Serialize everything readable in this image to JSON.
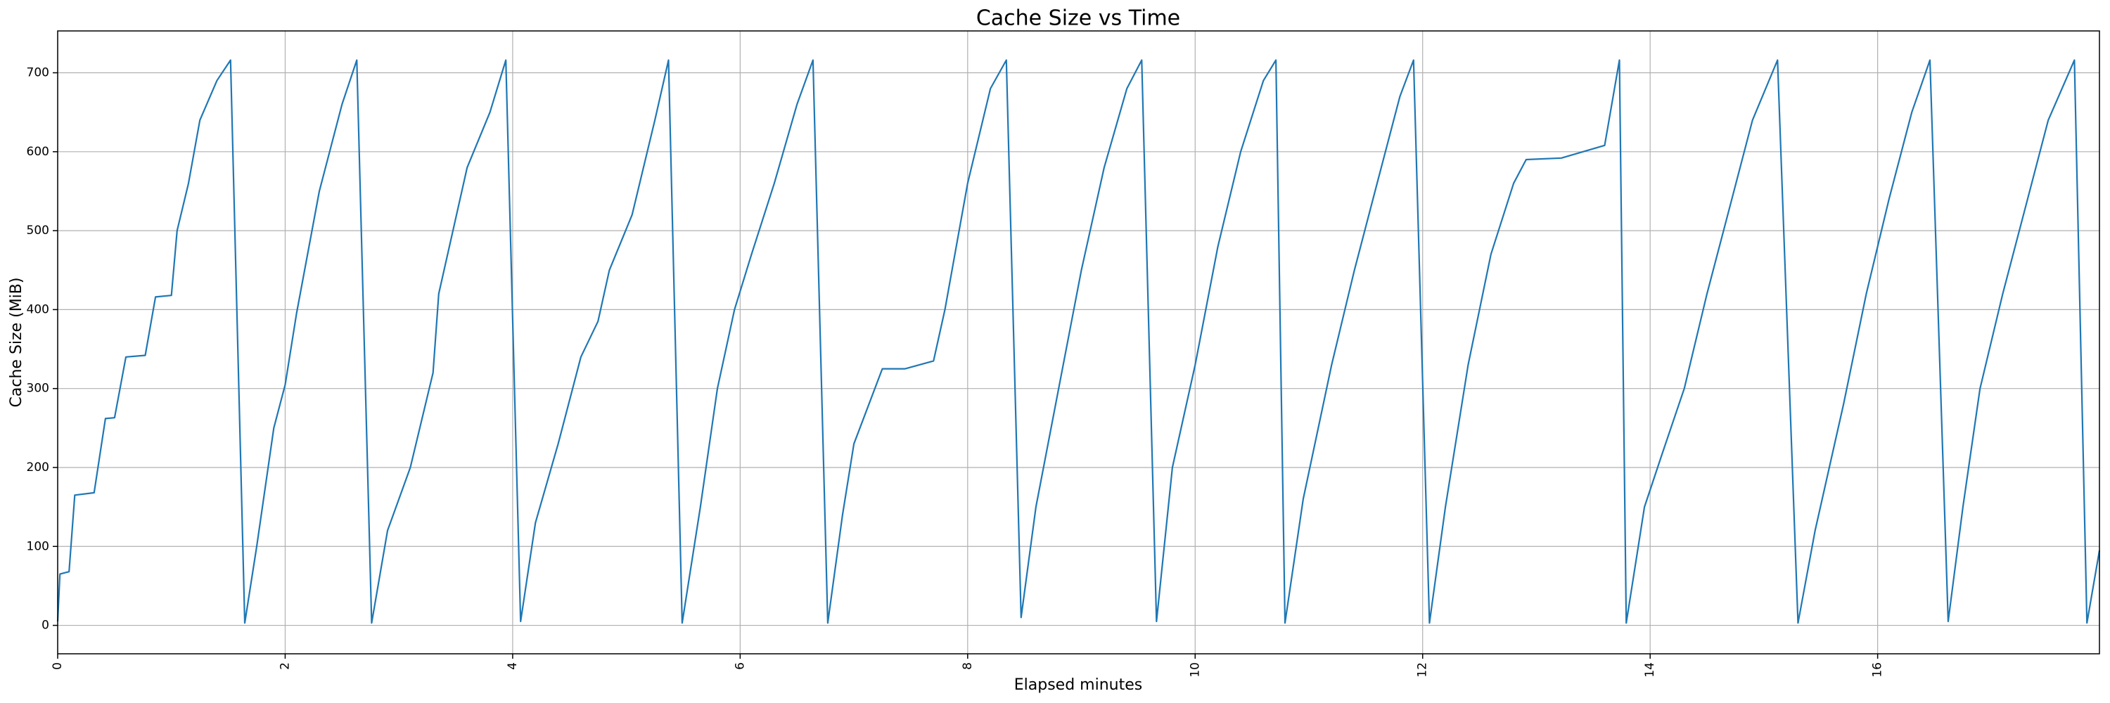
{
  "chart_data": {
    "type": "line",
    "title": "Cache Size vs Time",
    "x_label": "Elapsed minutes",
    "y_label": "Cache Size (MiB)",
    "x": [
      0,
      0.02,
      0.1,
      0.15,
      0.32,
      0.42,
      0.5,
      0.6,
      0.77,
      0.86,
      1.0,
      1.05,
      1.15,
      1.25,
      1.4,
      1.52,
      1.645,
      1.75,
      1.9,
      2.0,
      2.1,
      2.3,
      2.5,
      2.63,
      2.76,
      2.9,
      3.1,
      3.3,
      3.35,
      3.6,
      3.8,
      3.94,
      4.07,
      4.2,
      4.4,
      4.6,
      4.75,
      4.85,
      5.05,
      5.25,
      5.37,
      5.49,
      5.65,
      5.8,
      5.95,
      6.1,
      6.3,
      6.5,
      6.64,
      6.77,
      6.9,
      7.0,
      7.25,
      7.45,
      7.7,
      7.8,
      8.0,
      8.2,
      8.34,
      8.47,
      8.6,
      8.8,
      9.0,
      9.2,
      9.4,
      9.53,
      9.66,
      9.8,
      10.0,
      10.2,
      10.4,
      10.6,
      10.71,
      10.79,
      10.95,
      11.2,
      11.4,
      11.6,
      11.8,
      11.92,
      12.06,
      12.2,
      12.4,
      12.6,
      12.8,
      12.91,
      13.22,
      13.6,
      13.73,
      13.79,
      13.95,
      14.1,
      14.3,
      14.5,
      14.7,
      14.9,
      15.12,
      15.3,
      15.45,
      15.7,
      15.9,
      16.1,
      16.3,
      16.46,
      16.62,
      16.75,
      16.9,
      17.1,
      17.3,
      17.5,
      17.73,
      17.84,
      17.95
    ],
    "series": [
      {
        "name": "Cache Size",
        "color": "#1f77b4",
        "values": [
          5,
          65,
          68,
          165,
          168,
          262,
          263,
          340,
          342,
          416,
          418,
          500,
          560,
          640,
          690,
          716,
          3,
          100,
          250,
          305,
          395,
          550,
          660,
          716,
          3,
          120,
          200,
          320,
          420,
          580,
          650,
          716,
          5,
          130,
          230,
          340,
          385,
          450,
          520,
          640,
          716,
          3,
          150,
          300,
          400,
          470,
          560,
          660,
          716,
          3,
          140,
          230,
          325,
          325,
          335,
          400,
          560,
          680,
          716,
          10,
          150,
          300,
          450,
          580,
          680,
          716,
          5,
          200,
          330,
          480,
          600,
          690,
          716,
          3,
          160,
          330,
          450,
          560,
          670,
          716,
          3,
          150,
          330,
          470,
          560,
          590,
          592,
          608,
          716,
          3,
          150,
          215,
          300,
          420,
          530,
          640,
          716,
          3,
          120,
          280,
          420,
          540,
          650,
          716,
          5,
          150,
          300,
          420,
          530,
          640,
          716,
          3,
          95
        ]
      }
    ],
    "xlim": [
      0,
      17.95
    ],
    "ylim": [
      -36,
      753
    ],
    "xticks": [
      0,
      2,
      4,
      6,
      8,
      10,
      12,
      14,
      16
    ],
    "yticks": [
      0,
      100,
      200,
      300,
      400,
      500,
      600,
      700
    ],
    "grid": true
  }
}
